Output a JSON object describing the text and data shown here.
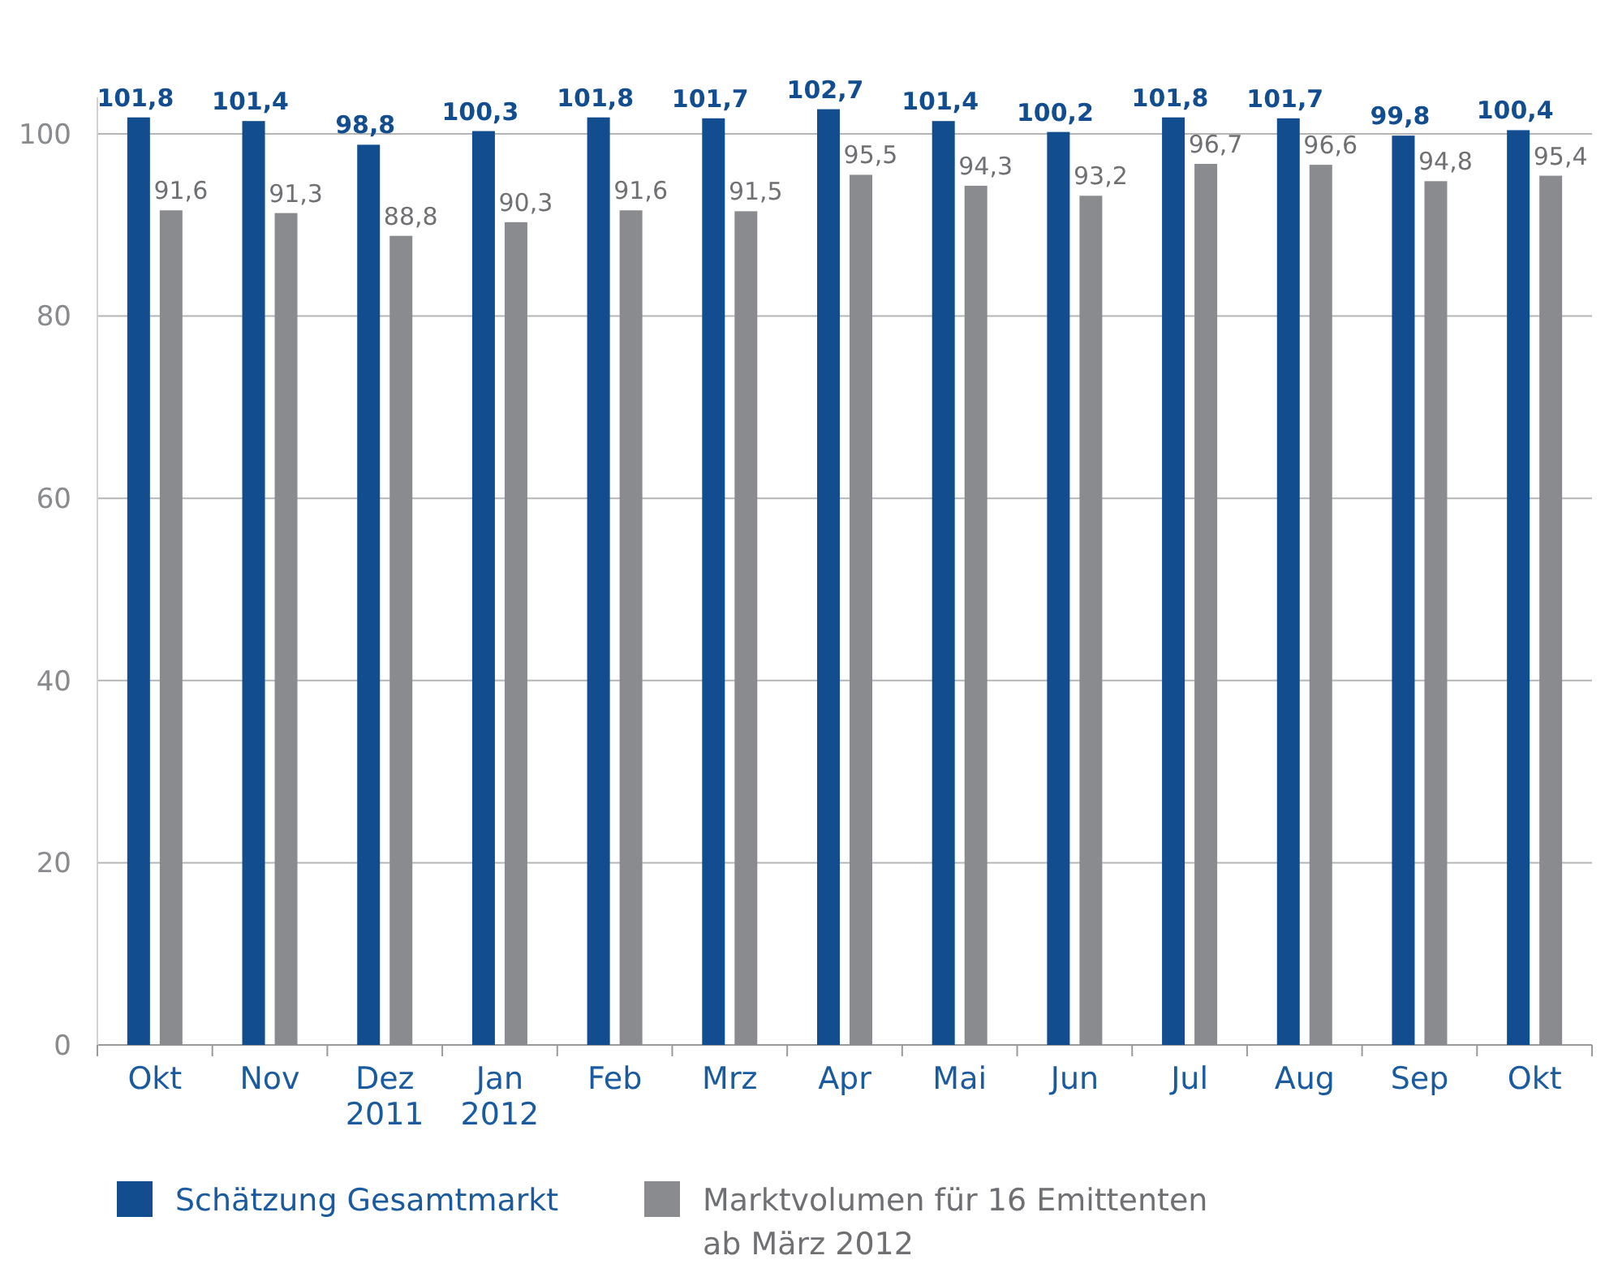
{
  "chart_data": {
    "type": "bar",
    "categories": [
      "Okt",
      "Nov",
      "Dez\n2011",
      "Jan\n2012",
      "Feb",
      "Mrz",
      "Apr",
      "Mai",
      "Jun",
      "Jul",
      "Aug",
      "Sep",
      "Okt"
    ],
    "series": [
      {
        "name": "Schätzung Gesamtmarkt",
        "color": "#124d8f",
        "values": [
          101.8,
          101.4,
          98.8,
          100.3,
          101.8,
          101.7,
          102.7,
          101.4,
          100.2,
          101.8,
          101.7,
          99.8,
          100.4
        ],
        "value_labels": [
          "101,8",
          "101,4",
          "98,8",
          "100,3",
          "101,8",
          "101,7",
          "102,7",
          "101,4",
          "100,2",
          "101,8",
          "101,7",
          "99,8",
          "100,4"
        ]
      },
      {
        "name": "Marktvolumen für 16 Emittenten\nab März 2012",
        "color": "#8a8b8e",
        "values": [
          91.6,
          91.3,
          88.8,
          90.3,
          91.6,
          91.5,
          95.5,
          94.3,
          93.2,
          96.7,
          96.6,
          94.8,
          95.4
        ],
        "value_labels": [
          "91,6",
          "91,3",
          "88,8",
          "90,3",
          "91,6",
          "91,5",
          "95,5",
          "94,3",
          "93,2",
          "96,7",
          "96,6",
          "94,8",
          "95,4"
        ]
      }
    ],
    "ylim": [
      0,
      104
    ],
    "yticks": [
      0,
      20,
      40,
      60,
      80,
      100
    ],
    "grid": "y",
    "legend": "bottom"
  }
}
